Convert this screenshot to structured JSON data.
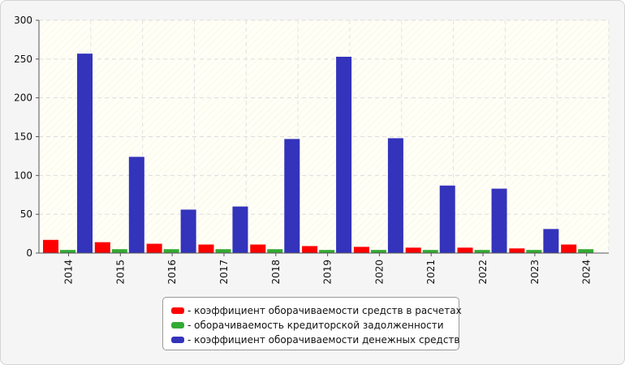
{
  "chart_data": {
    "type": "bar",
    "title": "",
    "xlabel": "",
    "ylabel": "",
    "ylim": [
      0,
      300
    ],
    "yticks": [
      0,
      50,
      100,
      150,
      200,
      250,
      300
    ],
    "grid": true,
    "legend_position": "bottom",
    "categories": [
      "2014",
      "2015",
      "2016",
      "2017",
      "2018",
      "2019",
      "2020",
      "2021",
      "2022",
      "2023",
      "2024"
    ],
    "series": [
      {
        "name": "- коэффициент оборачиваемости средств в расчетах",
        "color": "#ff0000",
        "values": [
          17,
          14,
          12,
          11,
          11,
          9,
          8,
          7,
          7,
          6,
          11
        ]
      },
      {
        "name": "- оборачиваемость кредиторской задолженности",
        "color": "#33aa33",
        "values": [
          4,
          5,
          5,
          5,
          5,
          4,
          4,
          4,
          4,
          4,
          5
        ]
      },
      {
        "name": "- коэффициент оборачиваемости денежных средств",
        "color": "#3333bb",
        "values": [
          257,
          124,
          56,
          60,
          147,
          253,
          148,
          87,
          83,
          31,
          0
        ]
      }
    ]
  }
}
